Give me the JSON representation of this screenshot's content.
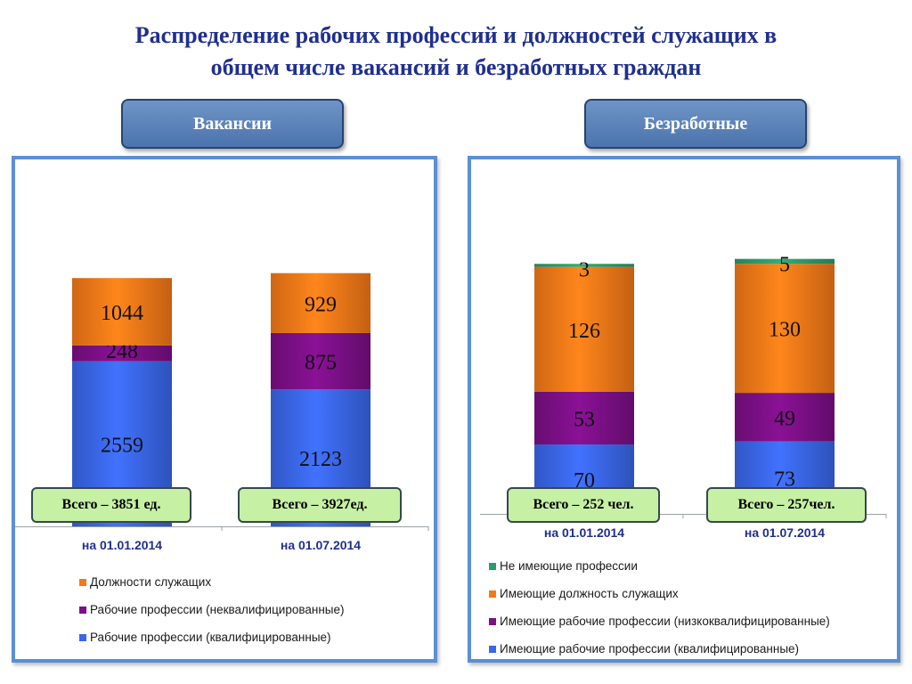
{
  "title_line1": "Распределение рабочих профессий и должностей служащих в",
  "title_line2": "общем числе вакансий и безработных граждан",
  "tabs": {
    "vacancies": "Вакансии",
    "unemployed": "Безработные"
  },
  "chart_data": [
    {
      "type": "bar",
      "stacked": true,
      "categories": [
        "на 01.01.2014",
        "на 01.07.2014"
      ],
      "series": [
        {
          "name": "Рабочие профессии (квалифицированные)",
          "color": "#3a66e8",
          "values": [
            2559,
            2123
          ]
        },
        {
          "name": "Рабочие профессии (неквалифицированные)",
          "color": "#7b0f86",
          "values": [
            248,
            875
          ]
        },
        {
          "name": "Должности служащих",
          "color": "#f57818",
          "values": [
            1044,
            929
          ]
        }
      ],
      "totals": [
        "Всего – 3851 ед.",
        "Всего – 3927ед."
      ],
      "legend_placement": "bottom"
    },
    {
      "type": "bar",
      "stacked": true,
      "categories": [
        "на 01.01.2014",
        "на 01.07.2014"
      ],
      "series": [
        {
          "name": "Имеющие рабочие профессии (квалифицированные)",
          "color": "#3a66e8",
          "values": [
            70,
            73
          ]
        },
        {
          "name": "Имеющие рабочие профессии (низкоквалифицированные)",
          "color": "#7b0f86",
          "values": [
            53,
            49
          ]
        },
        {
          "name": "Имеющие должность служащих",
          "color": "#f57818",
          "values": [
            126,
            130
          ]
        },
        {
          "name": "Не имеющие профессии",
          "color": "#2e9a6a",
          "values": [
            3,
            5
          ]
        }
      ],
      "totals": [
        "Всего – 252 чел.",
        "Всего – 257чел."
      ],
      "legend_placement": "bottom"
    }
  ]
}
